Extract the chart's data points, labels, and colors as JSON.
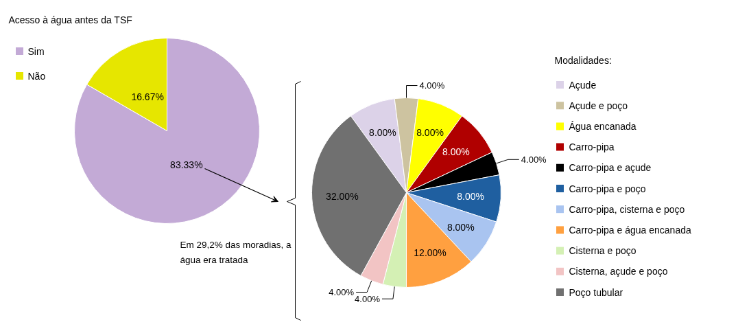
{
  "chart_data": [
    {
      "type": "pie",
      "title": "Acesso à água antes da TSF",
      "categories": [
        "Sim",
        "Não"
      ],
      "values": [
        83.33,
        16.67
      ],
      "colors": [
        "#c3aad6",
        "#e6e600"
      ],
      "value_labels": [
        "83.33%",
        "16.67%"
      ],
      "legend": "top left",
      "annotations": [
        "Em 29,2% das moradias, a água era tratada"
      ]
    },
    {
      "type": "pie",
      "legend_title": "Modalidades:",
      "categories": [
        "Açude",
        "Açude e poço",
        "Água encanada",
        "Carro-pipa",
        "Carro-pipa e açude",
        "Carro-pipa e poço",
        "Carro-pipa, cisterna e poço",
        "Carro-pipa e água encanada",
        "Cisterna e poço",
        "Cisterna, açude e poço",
        "Poço tubular"
      ],
      "values": [
        8,
        4,
        8,
        8,
        4,
        8,
        8,
        12,
        4,
        4,
        32
      ],
      "colors": [
        "#dcd2e8",
        "#cdc3a0",
        "#ffff00",
        "#b00000",
        "#000000",
        "#1f5fa0",
        "#a9c4f0",
        "#ffa040",
        "#d4f0b4",
        "#f2c4c4",
        "#707070"
      ],
      "value_labels": [
        "8.00%",
        "4.00%",
        "8.00%",
        "8.00%",
        "4.00%",
        "8.00%",
        "8.00%",
        "12.00%",
        "4.00%",
        "4.00%",
        "32.00%"
      ],
      "legend": "right"
    }
  ]
}
